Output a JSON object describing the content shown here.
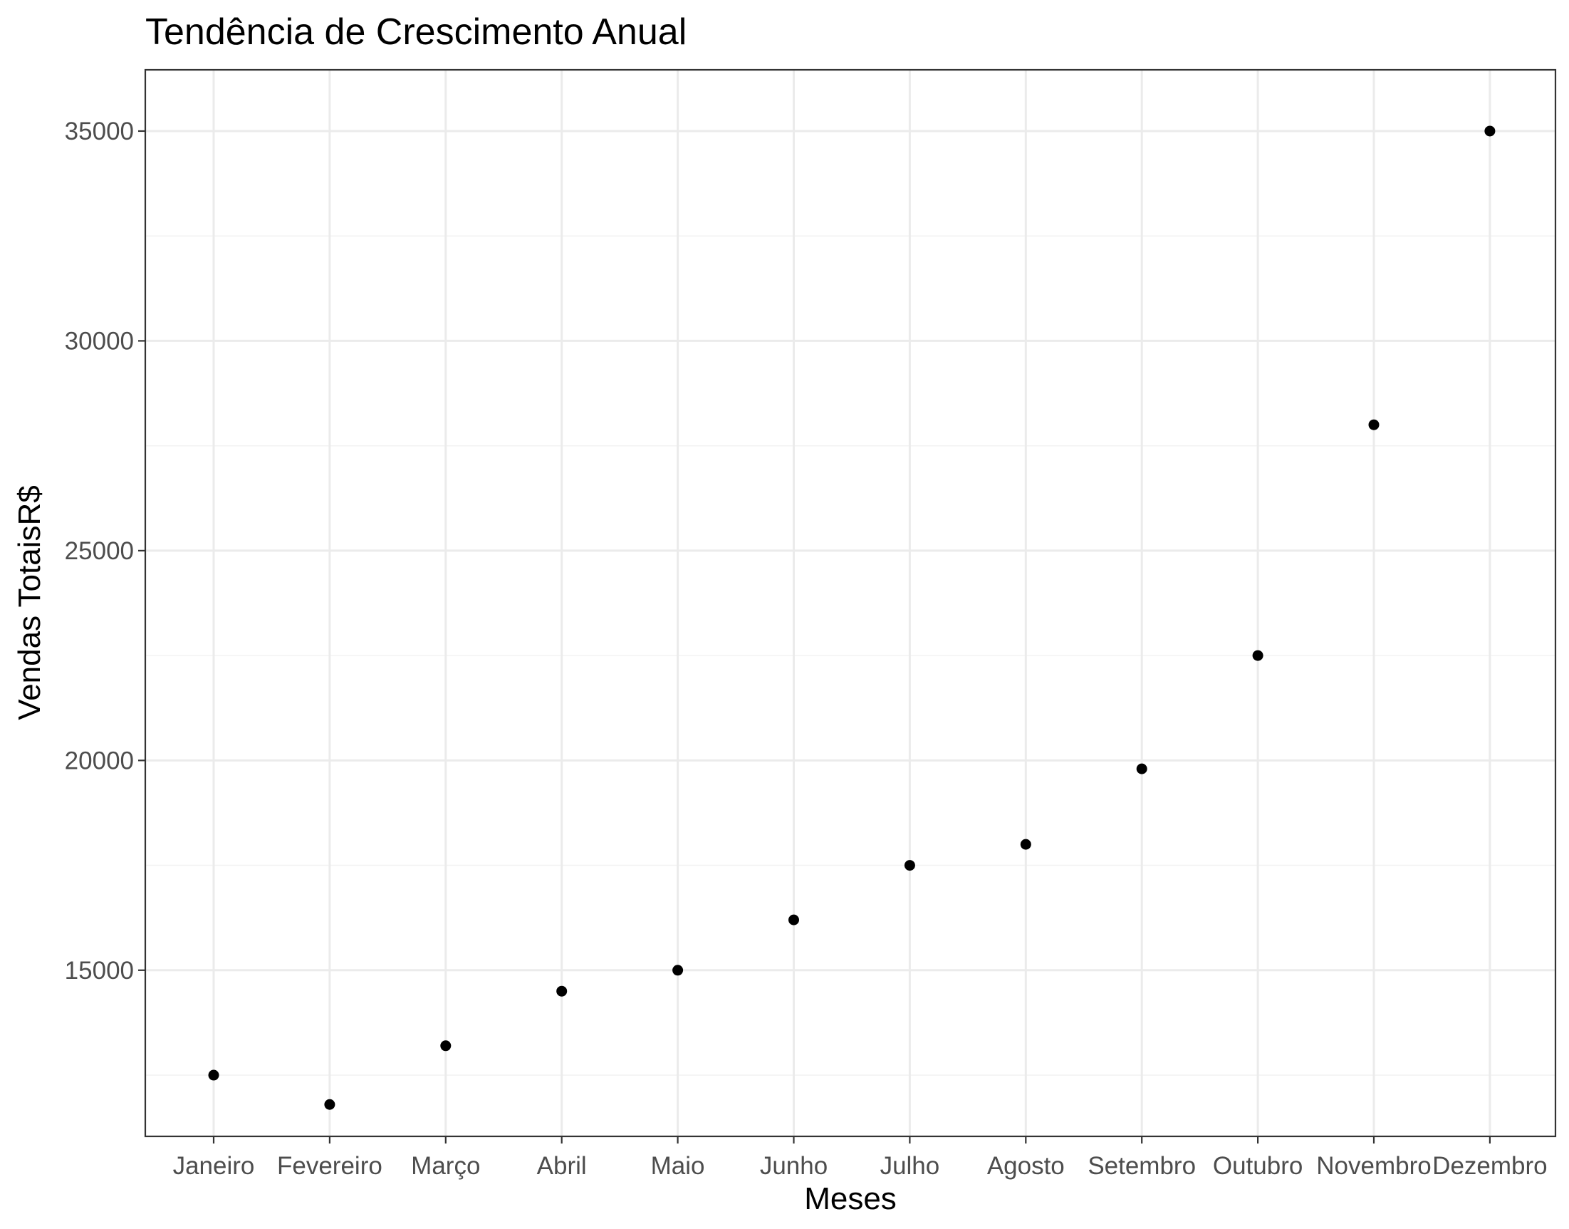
{
  "chart_data": {
    "type": "scatter",
    "title": "Tendência de Crescimento Anual",
    "xlabel": "Meses",
    "ylabel": "Vendas TotaisR$",
    "categories": [
      "Janeiro",
      "Fevereiro",
      "Março",
      "Abril",
      "Maio",
      "Junho",
      "Julho",
      "Agosto",
      "Setembro",
      "Outubro",
      "Novembro",
      "Dezembro"
    ],
    "values": [
      12500,
      11800,
      13200,
      14500,
      15000,
      16200,
      17500,
      18000,
      19800,
      22500,
      28000,
      35000
    ],
    "yticks": [
      15000,
      20000,
      25000,
      30000,
      35000
    ],
    "ytick_labels": [
      "15000",
      "20000",
      "25000",
      "30000",
      "35000"
    ],
    "ylim": [
      11040,
      36460
    ],
    "grid": true,
    "point_color": "#000000"
  }
}
